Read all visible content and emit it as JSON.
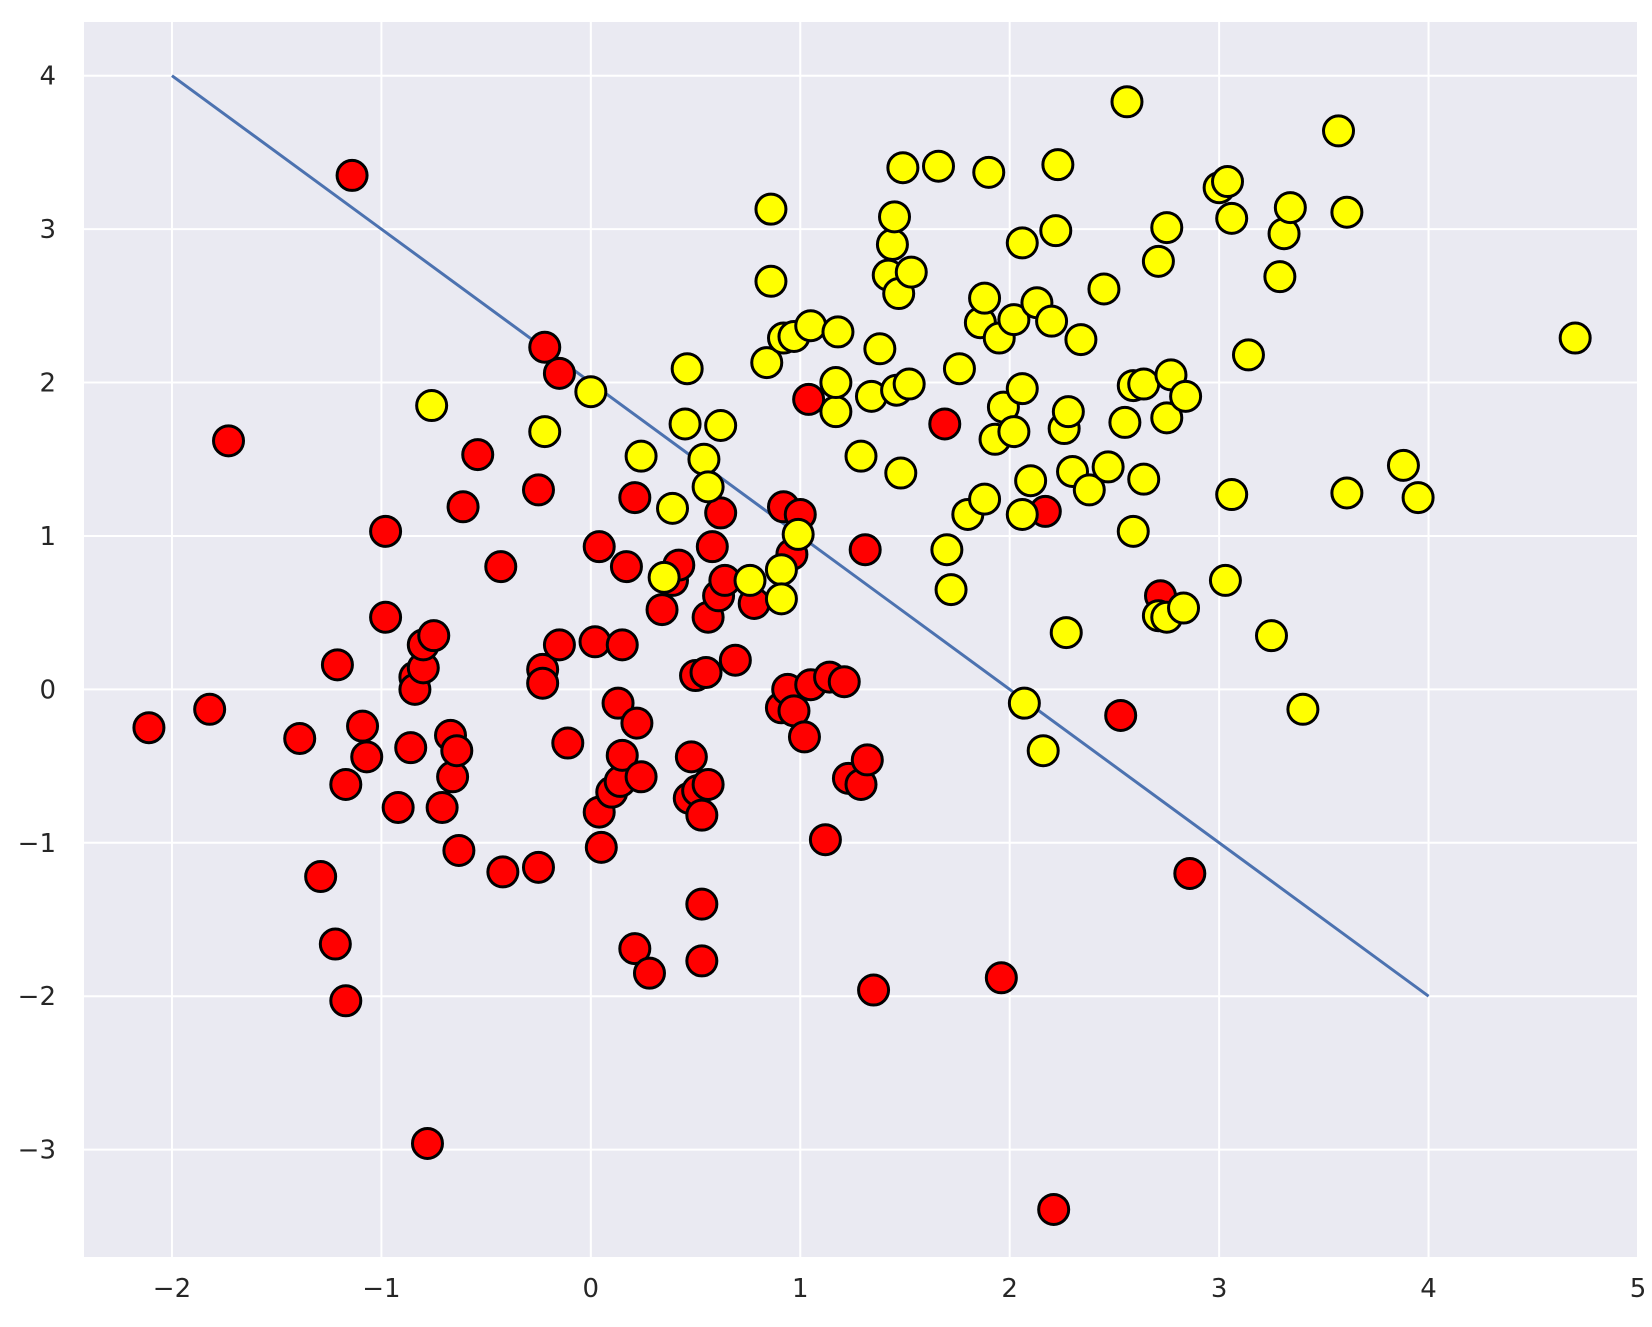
{
  "chart_data": {
    "type": "scatter",
    "title": "",
    "xlabel": "",
    "ylabel": "",
    "xlim": [
      -2.42,
      5.0
    ],
    "ylim": [
      -3.7,
      4.35
    ],
    "x_ticks": [
      -2,
      -1,
      0,
      1,
      2,
      3,
      4,
      5
    ],
    "y_ticks": [
      -3,
      -2,
      -1,
      0,
      1,
      2,
      3,
      4
    ],
    "x_tick_labels": [
      "−2",
      "−1",
      "0",
      "1",
      "2",
      "3",
      "4",
      "5"
    ],
    "y_tick_labels": [
      "−3",
      "−2",
      "−1",
      "0",
      "1",
      "2",
      "3",
      "4"
    ],
    "grid": true,
    "background_color": "#eaeaf2",
    "grid_color": "#ffffff",
    "legend": false,
    "marker_edge_color": "#000000",
    "line": {
      "x": [
        -2,
        4
      ],
      "y": [
        4,
        -2
      ],
      "color": "#4c72b0"
    },
    "series": [
      {
        "color": "#ff0000",
        "points": [
          [
            -2.11,
            -0.25
          ],
          [
            -1.82,
            -0.13
          ],
          [
            -1.73,
            1.62
          ],
          [
            -1.39,
            -0.32
          ],
          [
            -1.29,
            -1.22
          ],
          [
            -1.22,
            -1.66
          ],
          [
            -1.21,
            0.16
          ],
          [
            -1.17,
            -2.03
          ],
          [
            -1.17,
            -0.62
          ],
          [
            -1.14,
            3.35
          ],
          [
            -1.09,
            -0.24
          ],
          [
            -1.07,
            -0.44
          ],
          [
            -0.98,
            0.47
          ],
          [
            -0.98,
            1.03
          ],
          [
            -0.92,
            -0.77
          ],
          [
            -0.86,
            -0.38
          ],
          [
            -0.84,
            0.08
          ],
          [
            -0.84,
            0.0
          ],
          [
            -0.8,
            0.14
          ],
          [
            -0.8,
            0.29
          ],
          [
            -0.78,
            -2.96
          ],
          [
            -0.75,
            0.35
          ],
          [
            -0.71,
            -0.77
          ],
          [
            -0.67,
            -0.3
          ],
          [
            -0.66,
            -0.57
          ],
          [
            -0.64,
            -0.4
          ],
          [
            -0.63,
            -1.05
          ],
          [
            -0.61,
            1.19
          ],
          [
            -0.54,
            1.53
          ],
          [
            -0.42,
            -1.19
          ],
          [
            -0.43,
            0.8
          ],
          [
            -0.25,
            -1.16
          ],
          [
            -0.25,
            1.3
          ],
          [
            -0.23,
            0.13
          ],
          [
            -0.23,
            0.04
          ],
          [
            -0.22,
            2.23
          ],
          [
            -0.15,
            2.06
          ],
          [
            -0.15,
            0.29
          ],
          [
            -0.11,
            -0.35
          ],
          [
            0.02,
            0.31
          ],
          [
            0.04,
            0.93
          ],
          [
            0.04,
            -0.8
          ],
          [
            0.05,
            -1.03
          ],
          [
            0.1,
            -0.67
          ],
          [
            0.14,
            -0.6
          ],
          [
            0.15,
            0.29
          ],
          [
            0.13,
            -0.09
          ],
          [
            0.15,
            -0.43
          ],
          [
            0.17,
            0.8
          ],
          [
            0.21,
            1.25
          ],
          [
            0.21,
            -1.69
          ],
          [
            0.22,
            -0.22
          ],
          [
            0.24,
            -0.57
          ],
          [
            0.28,
            -1.85
          ],
          [
            0.34,
            0.52
          ],
          [
            0.39,
            0.71
          ],
          [
            0.42,
            0.81
          ],
          [
            0.47,
            -0.71
          ],
          [
            0.48,
            -0.44
          ],
          [
            0.5,
            0.09
          ],
          [
            0.51,
            -0.66
          ],
          [
            0.53,
            -1.4
          ],
          [
            0.53,
            -1.77
          ],
          [
            0.53,
            -0.82
          ],
          [
            0.55,
            0.11
          ],
          [
            0.56,
            0.47
          ],
          [
            0.56,
            -0.62
          ],
          [
            0.58,
            0.93
          ],
          [
            0.61,
            0.61
          ],
          [
            0.62,
            1.15
          ],
          [
            0.64,
            0.71
          ],
          [
            0.69,
            0.19
          ],
          [
            0.78,
            0.56
          ],
          [
            0.91,
            -0.12
          ],
          [
            0.92,
            1.19
          ],
          [
            0.94,
            0.0
          ],
          [
            0.96,
            0.88
          ],
          [
            0.97,
            -0.14
          ],
          [
            1.0,
            1.14
          ],
          [
            1.02,
            -0.31
          ],
          [
            1.04,
            1.89
          ],
          [
            1.05,
            0.03
          ],
          [
            1.12,
            -0.98
          ],
          [
            1.14,
            0.08
          ],
          [
            1.21,
            0.05
          ],
          [
            1.23,
            -0.58
          ],
          [
            1.29,
            -0.62
          ],
          [
            1.32,
            -0.46
          ],
          [
            1.31,
            0.91
          ],
          [
            1.35,
            -1.96
          ],
          [
            1.69,
            1.73
          ],
          [
            1.96,
            -1.88
          ],
          [
            2.17,
            1.16
          ],
          [
            2.21,
            -3.39
          ],
          [
            2.53,
            -0.17
          ],
          [
            2.72,
            0.61
          ],
          [
            2.86,
            -1.2
          ]
        ]
      },
      {
        "color": "#ffff00",
        "points": [
          [
            -0.76,
            1.85
          ],
          [
            -0.22,
            1.68
          ],
          [
            0.0,
            1.94
          ],
          [
            0.24,
            1.52
          ],
          [
            0.35,
            0.73
          ],
          [
            0.39,
            1.18
          ],
          [
            0.45,
            1.73
          ],
          [
            0.46,
            2.09
          ],
          [
            0.54,
            1.5
          ],
          [
            0.56,
            1.32
          ],
          [
            0.62,
            1.72
          ],
          [
            0.76,
            0.71
          ],
          [
            0.84,
            2.13
          ],
          [
            0.86,
            2.66
          ],
          [
            0.86,
            3.13
          ],
          [
            0.92,
            2.29
          ],
          [
            0.91,
            0.78
          ],
          [
            0.91,
            0.59
          ],
          [
            0.97,
            2.3
          ],
          [
            0.99,
            1.01
          ],
          [
            1.05,
            2.37
          ],
          [
            1.17,
            1.81
          ],
          [
            1.17,
            2.0
          ],
          [
            1.18,
            2.33
          ],
          [
            1.29,
            1.52
          ],
          [
            1.34,
            1.91
          ],
          [
            1.38,
            2.22
          ],
          [
            1.42,
            2.7
          ],
          [
            1.44,
            2.9
          ],
          [
            1.45,
            3.08
          ],
          [
            1.46,
            1.95
          ],
          [
            1.47,
            2.58
          ],
          [
            1.48,
            1.41
          ],
          [
            1.49,
            3.4
          ],
          [
            1.52,
            1.99
          ],
          [
            1.53,
            2.72
          ],
          [
            1.66,
            3.41
          ],
          [
            1.7,
            0.91
          ],
          [
            1.72,
            0.65
          ],
          [
            1.76,
            2.09
          ],
          [
            1.8,
            1.14
          ],
          [
            1.86,
            2.39
          ],
          [
            1.88,
            2.55
          ],
          [
            1.88,
            1.24
          ],
          [
            1.9,
            3.37
          ],
          [
            1.93,
            1.63
          ],
          [
            1.95,
            2.29
          ],
          [
            1.97,
            1.84
          ],
          [
            2.02,
            1.68
          ],
          [
            2.02,
            2.41
          ],
          [
            2.06,
            1.96
          ],
          [
            2.06,
            2.91
          ],
          [
            2.06,
            1.14
          ],
          [
            2.07,
            -0.09
          ],
          [
            2.1,
            1.36
          ],
          [
            2.13,
            2.52
          ],
          [
            2.16,
            -0.4
          ],
          [
            2.2,
            2.4
          ],
          [
            2.22,
            2.99
          ],
          [
            2.23,
            3.42
          ],
          [
            2.26,
            1.7
          ],
          [
            2.27,
            0.37
          ],
          [
            2.28,
            1.81
          ],
          [
            2.3,
            1.42
          ],
          [
            2.34,
            2.28
          ],
          [
            2.38,
            1.3
          ],
          [
            2.45,
            2.61
          ],
          [
            2.47,
            1.45
          ],
          [
            2.55,
            1.74
          ],
          [
            2.56,
            3.83
          ],
          [
            2.59,
            1.03
          ],
          [
            2.59,
            1.98
          ],
          [
            2.64,
            1.99
          ],
          [
            2.64,
            1.37
          ],
          [
            2.71,
            0.48
          ],
          [
            2.71,
            2.79
          ],
          [
            2.75,
            0.47
          ],
          [
            2.75,
            1.77
          ],
          [
            2.75,
            3.01
          ],
          [
            2.77,
            2.05
          ],
          [
            2.83,
            0.53
          ],
          [
            2.84,
            1.91
          ],
          [
            3.0,
            3.27
          ],
          [
            3.03,
            0.71
          ],
          [
            3.04,
            3.31
          ],
          [
            3.06,
            1.27
          ],
          [
            3.06,
            3.07
          ],
          [
            3.14,
            2.18
          ],
          [
            3.25,
            0.35
          ],
          [
            3.29,
            2.69
          ],
          [
            3.31,
            2.97
          ],
          [
            3.34,
            3.14
          ],
          [
            3.4,
            -0.13
          ],
          [
            3.57,
            3.64
          ],
          [
            3.61,
            1.28
          ],
          [
            3.61,
            3.11
          ],
          [
            3.88,
            1.46
          ],
          [
            3.95,
            1.25
          ],
          [
            4.7,
            2.29
          ]
        ]
      }
    ]
  }
}
